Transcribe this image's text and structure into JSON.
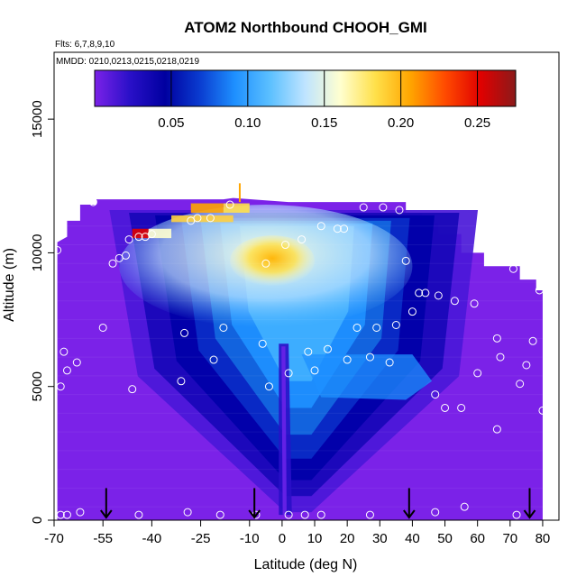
{
  "chart_data": {
    "type": "heatmap",
    "title": "ATOM2 Northbound CHOOH_GMI",
    "flights_label": "Flts: 6,7,8,9,10",
    "dates_label": "MMDD: 0210,0213,0215,0218,0219",
    "xlabel": "Latitude (deg N)",
    "ylabel": "Altitude (m)",
    "xlim": [
      -70,
      85
    ],
    "ylim": [
      0,
      17500
    ],
    "x_ticks": [
      -70,
      -55,
      -40,
      -25,
      -10,
      0,
      10,
      20,
      30,
      40,
      50,
      60,
      70,
      80
    ],
    "x_tick_labels": [
      "-70",
      "-55",
      "-40",
      "-25",
      "-10",
      "0",
      "10",
      "20",
      "30",
      "40",
      "50",
      "60",
      "70",
      "80"
    ],
    "y_ticks": [
      0,
      5000,
      10000,
      15000
    ],
    "y_tick_labels": [
      "0",
      "5000",
      "10000",
      "15000"
    ],
    "colorbar": {
      "min": 0.0,
      "max": 0.275,
      "ticks": [
        0.05,
        0.1,
        0.15,
        0.2,
        0.25
      ],
      "tick_labels": [
        "0.05",
        "0.10",
        "0.15",
        "0.20",
        "0.25"
      ],
      "colors": [
        "#7b22e8",
        "#2a10c8",
        "#0000a0",
        "#0a3cd0",
        "#1e90ff",
        "#5cc0ff",
        "#bfe4ff",
        "#ffffd0",
        "#ffe04a",
        "#ffa500",
        "#ff4a00",
        "#e00000",
        "#8b1a1a"
      ]
    },
    "arrow_latitudes": [
      -54,
      -8.5,
      39,
      76
    ],
    "observation_points": [
      {
        "lat": -68,
        "alt": 200
      },
      {
        "lat": -66,
        "alt": 200
      },
      {
        "lat": -62,
        "alt": 300
      },
      {
        "lat": -44,
        "alt": 200
      },
      {
        "lat": -29,
        "alt": 300
      },
      {
        "lat": -19,
        "alt": 200
      },
      {
        "lat": -8,
        "alt": 200
      },
      {
        "lat": 2,
        "alt": 200
      },
      {
        "lat": 7,
        "alt": 200
      },
      {
        "lat": 12,
        "alt": 200
      },
      {
        "lat": 27,
        "alt": 200
      },
      {
        "lat": 47,
        "alt": 300
      },
      {
        "lat": 56,
        "alt": 500
      },
      {
        "lat": 72,
        "alt": 200
      },
      {
        "lat": -66,
        "alt": 5600
      },
      {
        "lat": -63,
        "alt": 5900
      },
      {
        "lat": -68,
        "alt": 5000
      },
      {
        "lat": -46,
        "alt": 4900
      },
      {
        "lat": -31,
        "alt": 5200
      },
      {
        "lat": -21,
        "alt": 6000
      },
      {
        "lat": -6,
        "alt": 6600
      },
      {
        "lat": -4,
        "alt": 5000
      },
      {
        "lat": 2,
        "alt": 5500
      },
      {
        "lat": 8,
        "alt": 6300
      },
      {
        "lat": 10,
        "alt": 5600
      },
      {
        "lat": 14,
        "alt": 6400
      },
      {
        "lat": 20,
        "alt": 6000
      },
      {
        "lat": 27,
        "alt": 6100
      },
      {
        "lat": 33,
        "alt": 5900
      },
      {
        "lat": 47,
        "alt": 4700
      },
      {
        "lat": 50,
        "alt": 4200
      },
      {
        "lat": 55,
        "alt": 4200
      },
      {
        "lat": 60,
        "alt": 5500
      },
      {
        "lat": 67,
        "alt": 6100
      },
      {
        "lat": 73,
        "alt": 5100
      },
      {
        "lat": 75,
        "alt": 5800
      },
      {
        "lat": 80,
        "alt": 4100
      },
      {
        "lat": 66,
        "alt": 3400
      },
      {
        "lat": -67,
        "alt": 6300
      },
      {
        "lat": -55,
        "alt": 7200
      },
      {
        "lat": -30,
        "alt": 7000
      },
      {
        "lat": -18,
        "alt": 7200
      },
      {
        "lat": 23,
        "alt": 7200
      },
      {
        "lat": 29,
        "alt": 7200
      },
      {
        "lat": 35,
        "alt": 7300
      },
      {
        "lat": 40,
        "alt": 7800
      },
      {
        "lat": 53,
        "alt": 8200
      },
      {
        "lat": 59,
        "alt": 8100
      },
      {
        "lat": 66,
        "alt": 6800
      },
      {
        "lat": 77,
        "alt": 6700
      },
      {
        "lat": -69,
        "alt": 10100
      },
      {
        "lat": -52,
        "alt": 9600
      },
      {
        "lat": -50,
        "alt": 9800
      },
      {
        "lat": -48,
        "alt": 9900
      },
      {
        "lat": -47,
        "alt": 10500
      },
      {
        "lat": -44,
        "alt": 10600
      },
      {
        "lat": -42,
        "alt": 10600
      },
      {
        "lat": -40,
        "alt": 10700
      },
      {
        "lat": -5,
        "alt": 9600
      },
      {
        "lat": 1,
        "alt": 10300
      },
      {
        "lat": 6,
        "alt": 10500
      },
      {
        "lat": 12,
        "alt": 11000
      },
      {
        "lat": 17,
        "alt": 10900
      },
      {
        "lat": 19,
        "alt": 10900
      },
      {
        "lat": 38,
        "alt": 9700
      },
      {
        "lat": 42,
        "alt": 8500
      },
      {
        "lat": 44,
        "alt": 8500
      },
      {
        "lat": 48,
        "alt": 8400
      },
      {
        "lat": 71,
        "alt": 9400
      },
      {
        "lat": 79,
        "alt": 8600
      },
      {
        "lat": -58,
        "alt": 11900
      },
      {
        "lat": -28,
        "alt": 11200
      },
      {
        "lat": -26,
        "alt": 11300
      },
      {
        "lat": -22,
        "alt": 11300
      },
      {
        "lat": -16,
        "alt": 11800
      },
      {
        "lat": 25,
        "alt": 11700
      },
      {
        "lat": 31,
        "alt": 11700
      },
      {
        "lat": 36,
        "alt": 11600
      }
    ]
  }
}
